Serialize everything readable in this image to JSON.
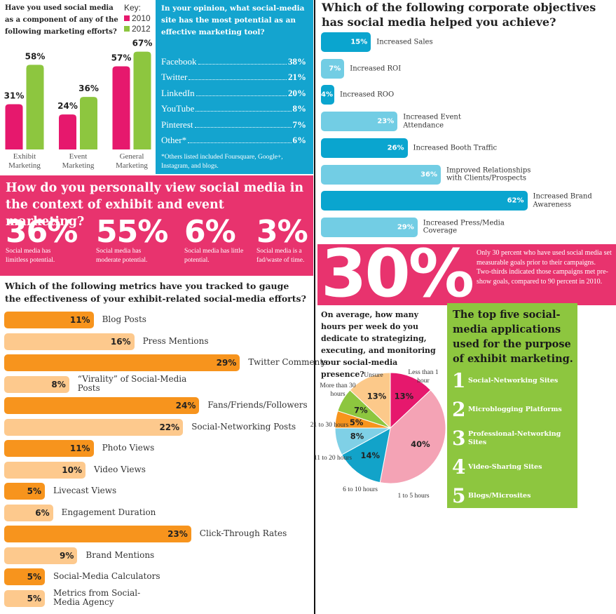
{
  "chart_data": [
    {
      "type": "bar",
      "title": "Have you used social media as a component of any of the following marketing efforts?",
      "legend_title": "Key:",
      "categories": [
        "Exhibit Marketing",
        "Event Marketing",
        "General Marketing"
      ],
      "series": [
        {
          "name": "2010",
          "color": "#e6186d",
          "values": [
            31,
            24,
            57
          ],
          "value_labels": [
            "31%",
            "24%",
            "57%"
          ]
        },
        {
          "name": "2012",
          "color": "#8dc63f",
          "values": [
            58,
            36,
            67
          ],
          "value_labels": [
            "58%",
            "36%",
            "67%"
          ]
        }
      ]
    },
    {
      "type": "list",
      "title": "In your opinion, what social-media site has the most potential as an effective marketing tool?",
      "categories": [
        "Facebook",
        "Twitter",
        "LinkedIn",
        "YouTube",
        "Pinterest",
        "Other*"
      ],
      "values": [
        38,
        21,
        20,
        8,
        7,
        6
      ],
      "value_labels": [
        "38%",
        "21%",
        "20%",
        "8%",
        "7%",
        "6%"
      ],
      "note": "*Others listed included Foursquare, Google+, Instagram, and blogs."
    },
    {
      "type": "hbar",
      "title": "Which of the following corporate objectives has social media helped you achieve?",
      "categories": [
        "Increased Sales",
        "Increased ROI",
        "Increased ROO",
        "Increased Event Attendance",
        "Increased Booth Traffic",
        "Improved Relationships with Clients/Prospects",
        "Increased Brand Awareness",
        "Increased Press/Media Coverage"
      ],
      "values": [
        15,
        7,
        4,
        23,
        26,
        36,
        62,
        29
      ],
      "value_labels": [
        "15%",
        "7%",
        "4%",
        "23%",
        "26%",
        "36%",
        "62%",
        "29%"
      ],
      "colors": [
        "#0aa5cf",
        "#72cde4",
        "#0aa5cf",
        "#72cde4",
        "#0aa5cf",
        "#72cde4",
        "#0aa5cf",
        "#72cde4"
      ]
    },
    {
      "type": "hbar",
      "title": "Which of the following metrics have you tracked to gauge the effectiveness of your exhibit-related social-media efforts?",
      "categories": [
        "Blog Posts",
        "Press Mentions",
        "Twitter Comments",
        "“Virality” of Social-Media Posts",
        "Fans/Friends/Followers",
        "Social-Networking Posts",
        "Photo Views",
        "Video Views",
        "Livecast Views",
        "Engagement Duration",
        "Click-Through Rates",
        "Brand Mentions",
        "Social-Media Calculators",
        "Metrics from Social-Media Agency"
      ],
      "values": [
        11,
        16,
        29,
        8,
        24,
        22,
        11,
        10,
        5,
        6,
        23,
        9,
        5,
        5
      ],
      "value_labels": [
        "11%",
        "16%",
        "29%",
        "8%",
        "24%",
        "22%",
        "11%",
        "10%",
        "5%",
        "6%",
        "23%",
        "9%",
        "5%",
        "5%"
      ],
      "colors": [
        "#f7941d",
        "#fdc98d",
        "#f7941d",
        "#fdc98d",
        "#f7941d",
        "#fdc98d",
        "#f7941d",
        "#fdc98d",
        "#f7941d",
        "#fdc98d",
        "#f7941d",
        "#fdc98d",
        "#f7941d",
        "#fdc98d"
      ]
    },
    {
      "type": "pie",
      "title": "On average, how many hours per week do you dedicate to strategizing, executing, and monitoring your social-media presence?",
      "categories": [
        "Less than 1 hour",
        "1 to 5 hours",
        "6 to 10 hours",
        "11 to 20 hours",
        "21 to 30 hours",
        "More than 30 hours",
        "Unsure"
      ],
      "values": [
        13,
        40,
        14,
        8,
        5,
        7,
        13
      ],
      "value_labels": [
        "13%",
        "40%",
        "14%",
        "8%",
        "5%",
        "7%",
        "13%"
      ],
      "colors": [
        "#e6186d",
        "#f4a3b5",
        "#12a3c9",
        "#7fd0e6",
        "#f7941d",
        "#8dc63f",
        "#fcc98a"
      ]
    }
  ],
  "view_panel": {
    "title": "How do you personally view social media in the context of exhibit and event marketing?",
    "stats": [
      {
        "value": "36%",
        "text": "Social media has limitless potential."
      },
      {
        "value": "55%",
        "text": "Social media has moderate potential."
      },
      {
        "value": "6%",
        "text": "Social media has little potential."
      },
      {
        "value": "3%",
        "text": "Social media is a fad/waste of time."
      }
    ]
  },
  "highlight": {
    "value": "30%",
    "text": "Only 30 percent who have used social media set measurable goals prior to their campaigns. Two-thirds indicated those campaigns met pre-show goals, compared to 90 percent in 2010."
  },
  "top_five": {
    "title": "The top five social-media applications used for the purpose of exhibit marketing.",
    "items": [
      {
        "rank": "1",
        "label": "Social-Networking Sites"
      },
      {
        "rank": "2",
        "label": "Microblogging Platforms"
      },
      {
        "rank": "3",
        "label": "Professional-Networking Sites"
      },
      {
        "rank": "4",
        "label": "Video-Sharing Sites"
      },
      {
        "rank": "5",
        "label": "Blogs/Microsites"
      }
    ]
  }
}
